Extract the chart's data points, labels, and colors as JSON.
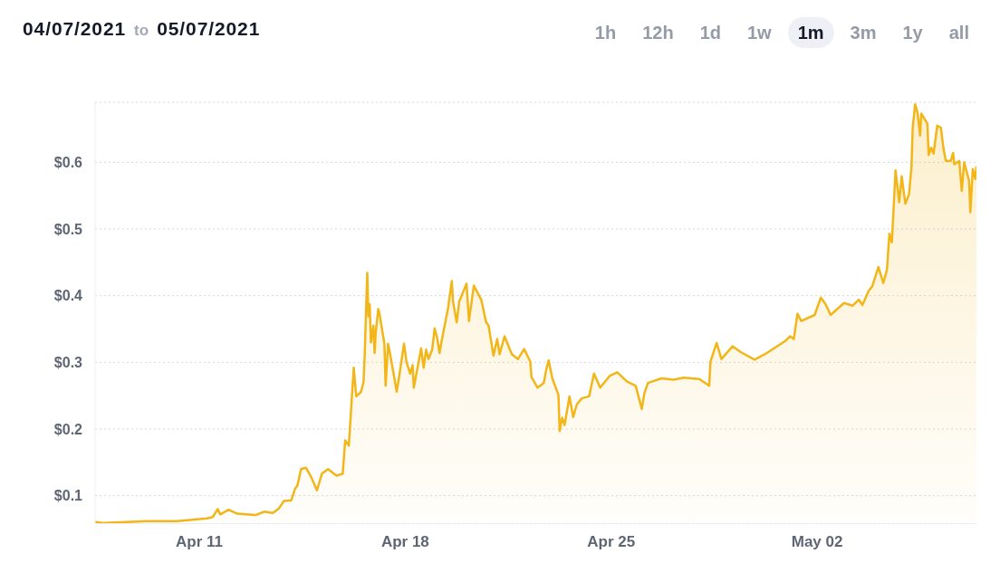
{
  "chart_data": {
    "type": "area",
    "title": "04/07/2021 to 05/07/2021",
    "annotations": [
      "1h",
      "12h",
      "1d",
      "1w",
      "1m",
      "3m",
      "1y",
      "all"
    ],
    "x": [
      "2021-04-07T11:00",
      "2021-04-07T18:00",
      "2021-04-09T05:00",
      "2021-04-10T06:00",
      "2021-04-10T18:00",
      "2021-04-11T06:00",
      "2021-04-11T11:00",
      "2021-04-11T15:00",
      "2021-04-11T17:00",
      "2021-04-12T00:00",
      "2021-04-12T07:00",
      "2021-04-12T22:00",
      "2021-04-13T05:00",
      "2021-04-13T12:00",
      "2021-04-13T17:00",
      "2021-04-13T21:00",
      "2021-04-14T03:00",
      "2021-04-14T06:00",
      "2021-04-14T08:00",
      "2021-04-14T11:00",
      "2021-04-14T15:00",
      "2021-04-14T19:00",
      "2021-04-15T00:00",
      "2021-04-15T04:00",
      "2021-04-15T09:00",
      "2021-04-15T16:00",
      "2021-04-15T21:00",
      "2021-04-15T23:00",
      "2021-04-16T02:00",
      "2021-04-16T06:00",
      "2021-04-16T08:00",
      "2021-04-16T12:00",
      "2021-04-16T14:00",
      "2021-04-16T15:00",
      "2021-04-16T17:00",
      "2021-04-16T18:00",
      "2021-04-16T19:00",
      "2021-04-16T20:00",
      "2021-04-16T22:00",
      "2021-04-16T23:00",
      "2021-04-17T00:00",
      "2021-04-17T02:00",
      "2021-04-17T03:00",
      "2021-04-17T07:00",
      "2021-04-17T08:00",
      "2021-04-17T10:00",
      "2021-04-17T11:00",
      "2021-04-17T15:00",
      "2021-04-17T17:00",
      "2021-04-17T19:00",
      "2021-04-17T23:00",
      "2021-04-18T01:00",
      "2021-04-18T04:00",
      "2021-04-18T06:00",
      "2021-04-18T07:00",
      "2021-04-18T13:00",
      "2021-04-18T15:00",
      "2021-04-18T17:00",
      "2021-04-18T19:00",
      "2021-04-18T22:00",
      "2021-04-19T00:00",
      "2021-04-19T02:00",
      "2021-04-19T04:00",
      "2021-04-19T06:00",
      "2021-04-19T11:00",
      "2021-04-19T14:00",
      "2021-04-19T15:00",
      "2021-04-19T18:00",
      "2021-04-19T20:00",
      "2021-04-20T02:00",
      "2021-04-20T04:00",
      "2021-04-20T06:00",
      "2021-04-20T08:00",
      "2021-04-20T14:00",
      "2021-04-20T18:00",
      "2021-04-20T20:00",
      "2021-04-21T00:00",
      "2021-04-21T03:00",
      "2021-04-21T05:00",
      "2021-04-21T09:00",
      "2021-04-21T15:00",
      "2021-04-21T20:00",
      "2021-04-22T01:00",
      "2021-04-22T06:00",
      "2021-04-22T07:00",
      "2021-04-22T12:00",
      "2021-04-22T17:00",
      "2021-04-22T19:00",
      "2021-04-22T21:00",
      "2021-04-23T00:00",
      "2021-04-23T05:00",
      "2021-04-23T06:00",
      "2021-04-23T08:00",
      "2021-04-23T10:00",
      "2021-04-23T14:00",
      "2021-04-23T17:00",
      "2021-04-23T20:00",
      "2021-04-24T00:00",
      "2021-04-24T06:00",
      "2021-04-24T10:00",
      "2021-04-24T15:00",
      "2021-04-24T23:00",
      "2021-04-25T05:00",
      "2021-04-25T13:00",
      "2021-04-25T20:00",
      "2021-04-26T01:00",
      "2021-04-26T03:00",
      "2021-04-26T06:00",
      "2021-04-26T17:00",
      "2021-04-27T03:00",
      "2021-04-27T11:00",
      "2021-04-28T00:00",
      "2021-04-28T08:00",
      "2021-04-28T09:00",
      "2021-04-28T14:00",
      "2021-04-28T18:00",
      "2021-04-29T03:00",
      "2021-04-29T10:00",
      "2021-04-29T21:00",
      "2021-04-30T07:00",
      "2021-04-30T22:00",
      "2021-05-01T02:00",
      "2021-05-01T05:00",
      "2021-05-01T08:00",
      "2021-05-01T11:00",
      "2021-05-01T22:00",
      "2021-05-02T03:00",
      "2021-05-02T07:00",
      "2021-05-02T11:00",
      "2021-05-02T22:00",
      "2021-05-03T05:00",
      "2021-05-03T10:00",
      "2021-05-03T13:00",
      "2021-05-03T18:00",
      "2021-05-03T21:00",
      "2021-05-04T02:00",
      "2021-05-04T06:00",
      "2021-05-04T09:00",
      "2021-05-04T11:00",
      "2021-05-04T13:00",
      "2021-05-04T16:00",
      "2021-05-04T19:00",
      "2021-05-04T21:00",
      "2021-05-05T00:00",
      "2021-05-05T03:00",
      "2021-05-05T05:00",
      "2021-05-05T06:00",
      "2021-05-05T08:00",
      "2021-05-05T10:00",
      "2021-05-05T12:00",
      "2021-05-05T13:00",
      "2021-05-05T18:00",
      "2021-05-05T19:00",
      "2021-05-05T21:00",
      "2021-05-05T23:00",
      "2021-05-06T02:00",
      "2021-05-06T05:00",
      "2021-05-06T07:00",
      "2021-05-06T09:00",
      "2021-05-06T13:00",
      "2021-05-06T15:00",
      "2021-05-06T16:00",
      "2021-05-06T20:00",
      "2021-05-06T22:00",
      "2021-05-07T00:00",
      "2021-05-07T04:00",
      "2021-05-07T05:00",
      "2021-05-07T07:00",
      "2021-05-07T09:00",
      "2021-05-07T10:00"
    ],
    "values": [
      0.061,
      0.059,
      0.062,
      0.062,
      0.064,
      0.066,
      0.068,
      0.08,
      0.072,
      0.079,
      0.073,
      0.071,
      0.076,
      0.074,
      0.081,
      0.092,
      0.093,
      0.11,
      0.115,
      0.14,
      0.142,
      0.129,
      0.108,
      0.133,
      0.14,
      0.13,
      0.133,
      0.183,
      0.175,
      0.292,
      0.249,
      0.256,
      0.271,
      0.314,
      0.434,
      0.369,
      0.387,
      0.33,
      0.355,
      0.314,
      0.346,
      0.38,
      0.373,
      0.328,
      0.265,
      0.328,
      0.319,
      0.278,
      0.256,
      0.278,
      0.328,
      0.301,
      0.283,
      0.296,
      0.262,
      0.321,
      0.292,
      0.319,
      0.305,
      0.319,
      0.351,
      0.337,
      0.314,
      0.335,
      0.382,
      0.422,
      0.391,
      0.36,
      0.391,
      0.418,
      0.362,
      0.389,
      0.415,
      0.394,
      0.36,
      0.355,
      0.31,
      0.335,
      0.312,
      0.339,
      0.312,
      0.305,
      0.32,
      0.301,
      0.278,
      0.262,
      0.269,
      0.289,
      0.303,
      0.276,
      0.251,
      0.197,
      0.217,
      0.206,
      0.249,
      0.218,
      0.237,
      0.246,
      0.249,
      0.283,
      0.262,
      0.28,
      0.285,
      0.271,
      0.265,
      0.23,
      0.253,
      0.269,
      0.276,
      0.274,
      0.277,
      0.275,
      0.265,
      0.301,
      0.329,
      0.305,
      0.324,
      0.315,
      0.304,
      0.314,
      0.332,
      0.339,
      0.335,
      0.373,
      0.362,
      0.371,
      0.397,
      0.387,
      0.371,
      0.389,
      0.385,
      0.394,
      0.386,
      0.407,
      0.414,
      0.443,
      0.419,
      0.439,
      0.493,
      0.48,
      0.588,
      0.54,
      0.579,
      0.538,
      0.552,
      0.593,
      0.652,
      0.687,
      0.674,
      0.64,
      0.673,
      0.658,
      0.611,
      0.622,
      0.613,
      0.655,
      0.652,
      0.622,
      0.602,
      0.602,
      0.614,
      0.597,
      0.602,
      0.557,
      0.6,
      0.572,
      0.525,
      0.59,
      0.575,
      0.594
    ],
    "color": "#f2b619",
    "xlim": [
      "2021-04-07T11:00",
      "2021-05-07T10:00"
    ],
    "xticks": [
      {
        "value": "2021-04-11",
        "label": "Apr 11"
      },
      {
        "value": "2021-04-18",
        "label": "Apr 18"
      },
      {
        "value": "2021-04-25",
        "label": "Apr 25"
      },
      {
        "value": "2021-05-02",
        "label": "May 02"
      }
    ],
    "ylim": [
      0.058,
      0.69
    ],
    "yticks": [
      {
        "value": 0.1,
        "label": "$0.1"
      },
      {
        "value": 0.2,
        "label": "$0.2"
      },
      {
        "value": 0.3,
        "label": "$0.3"
      },
      {
        "value": 0.4,
        "label": "$0.4"
      },
      {
        "value": 0.5,
        "label": "$0.5"
      },
      {
        "value": 0.6,
        "label": "$0.6"
      }
    ],
    "grid": "y"
  }
}
